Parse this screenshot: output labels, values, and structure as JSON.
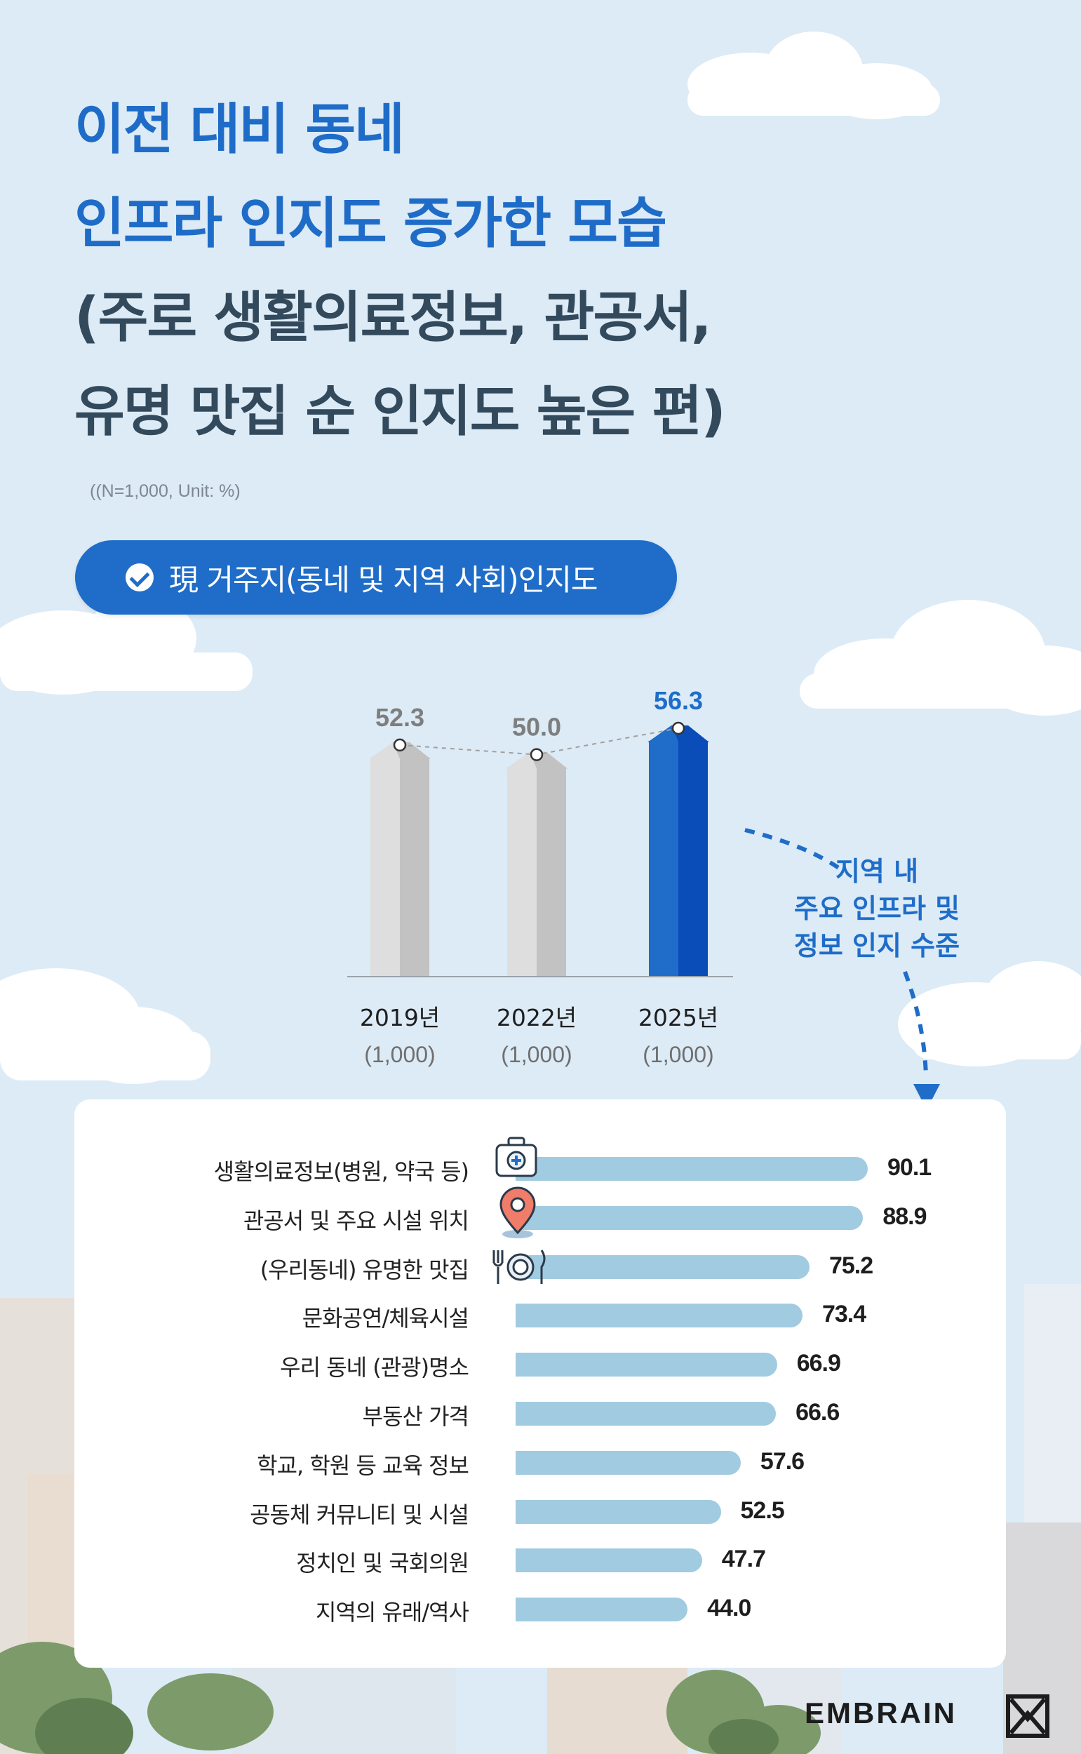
{
  "title": {
    "line1": "이전 대비 동네",
    "line2": "인프라 인지도 증가한 모습",
    "line3": "(주로 생활의료정보, 관공서,",
    "line4": "유명 맛집 순 인지도 높은 편)"
  },
  "note": "((N=1,000, Unit: %)",
  "pill_label": "現 거주지(동네 및 지역 사회)인지도",
  "annotation": {
    "line1": "지역 내",
    "line2": "주요 인프라 및",
    "line3": "정보 인지 수준"
  },
  "logo": "EMBRAIN",
  "colors": {
    "background": "#dcebf6",
    "accent_blue": "#1f6dc9",
    "dark_blue": "#0a4db8",
    "grey_bar": "#cfcfcf",
    "light_bar": "#a1cbe0"
  },
  "icons": [
    "medical-bag-icon",
    "map-pin-icon",
    "dining-icon"
  ],
  "chart_data": [
    {
      "type": "bar",
      "categories": [
        "2019년",
        "2022년",
        "2025년"
      ],
      "sample_labels": [
        "(1,000)",
        "(1,000)",
        "(1,000)"
      ],
      "values": [
        52.3,
        50.0,
        56.3
      ],
      "value_labels": [
        "52.3",
        "50.0",
        "56.3"
      ],
      "highlight": "2025년",
      "trend_line": true
    },
    {
      "type": "bar",
      "orientation": "horizontal",
      "categories": [
        "생활의료정보(병원, 약국 등)",
        "관공서 및 주요 시설 위치",
        "(우리동네) 유명한 맛집",
        "문화공연/체육시설",
        "우리 동네 (관광)명소",
        "부동산 가격",
        "학교, 학원 등 교육 정보",
        "공동체 커뮤니티 및 시설",
        "정치인 및 국회의원",
        "지역의 유래/역사"
      ],
      "values": [
        90.1,
        88.9,
        75.2,
        73.4,
        66.9,
        66.6,
        57.6,
        52.5,
        47.7,
        44.0
      ],
      "value_labels": [
        "90.1",
        "88.9",
        "75.2",
        "73.4",
        "66.9",
        "66.6",
        "57.6",
        "52.5",
        "47.7",
        "44.0"
      ]
    }
  ]
}
